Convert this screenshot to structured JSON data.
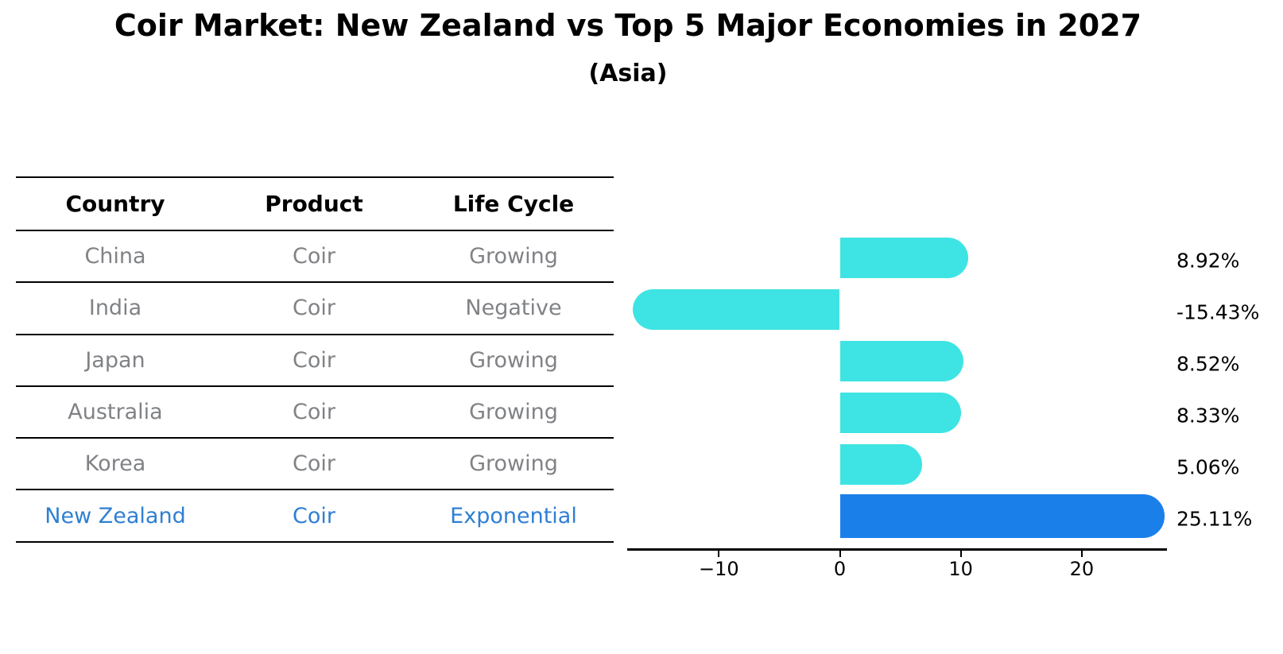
{
  "chart_data": {
    "type": "bar",
    "orientation": "horizontal",
    "title": "Coir Market: New Zealand vs Top 5 Major Economies in 2027",
    "subtitle": "(Asia)",
    "categories": [
      "China",
      "India",
      "Japan",
      "Australia",
      "Korea",
      "New Zealand"
    ],
    "values": [
      8.92,
      -15.43,
      8.52,
      8.33,
      5.06,
      25.11
    ],
    "value_labels": [
      "8.92%",
      "-15.43%",
      "8.52%",
      "8.33%",
      "5.06%",
      "25.11%"
    ],
    "unit": "%",
    "xticks": [
      -10,
      0,
      10,
      20
    ],
    "xtick_labels": [
      "−10",
      "0",
      "10",
      "20"
    ],
    "xlim": [
      -17.6,
      27.1
    ],
    "grid": false,
    "legend": false,
    "bar_color": "#3EE4E3",
    "highlight_index": 5,
    "highlight_color": "#1B7FEA",
    "highlight_edge_style": "dotted"
  },
  "table": {
    "headers": [
      "Country",
      "Product",
      "Life Cycle"
    ],
    "rows": [
      {
        "country": "China",
        "product": "Coir",
        "life_cycle": "Growing"
      },
      {
        "country": "India",
        "product": "Coir",
        "life_cycle": "Negative"
      },
      {
        "country": "Japan",
        "product": "Coir",
        "life_cycle": "Growing"
      },
      {
        "country": "Australia",
        "product": "Coir",
        "life_cycle": "Growing"
      },
      {
        "country": "Korea",
        "product": "Coir",
        "life_cycle": "Growing"
      },
      {
        "country": "New Zealand",
        "product": "Coir",
        "life_cycle": "Exponential"
      }
    ],
    "highlight_row": 5,
    "highlight_text_color": "#2F7FD3",
    "body_text_color": "#808285"
  }
}
